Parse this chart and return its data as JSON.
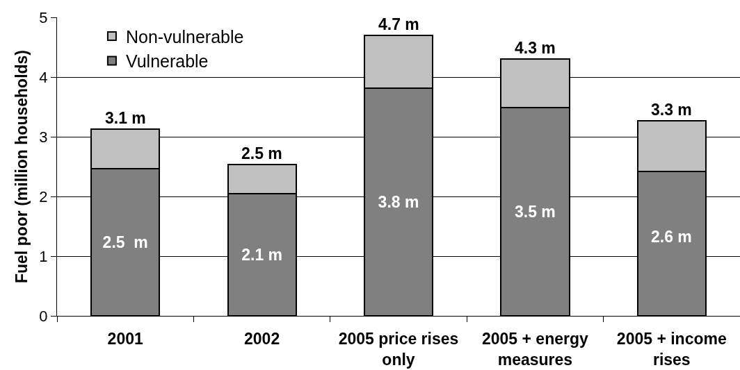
{
  "chart_data": {
    "type": "bar",
    "stacked": true,
    "ylabel": "Fuel poor (million households)",
    "categories": [
      "2001",
      "2002",
      "2005 price rises only",
      "2005 + energy measures",
      "2005 + income rises"
    ],
    "series": [
      {
        "name": "Vulnerable",
        "color": "#808080",
        "values": [
          2.47,
          2.05,
          3.81,
          3.49,
          2.42
        ],
        "value_labels": [
          "2.5  m",
          "2.1 m",
          "3.8 m",
          "3.5 m",
          null
        ]
      },
      {
        "name": "Non-vulnerable",
        "color": "#c0c0c0",
        "values": [
          0.66,
          0.48,
          0.89,
          0.81,
          0.85
        ]
      }
    ],
    "totals": [
      "3.1 m",
      "2.5 m",
      "4.7 m",
      "4.3 m",
      "3.3 m"
    ],
    "annotations": [
      "2.6 m"
    ],
    "ylim": [
      0,
      5
    ],
    "yticks": [
      0,
      1,
      2,
      3,
      4,
      5
    ],
    "grid": "y",
    "legend": "top left"
  }
}
